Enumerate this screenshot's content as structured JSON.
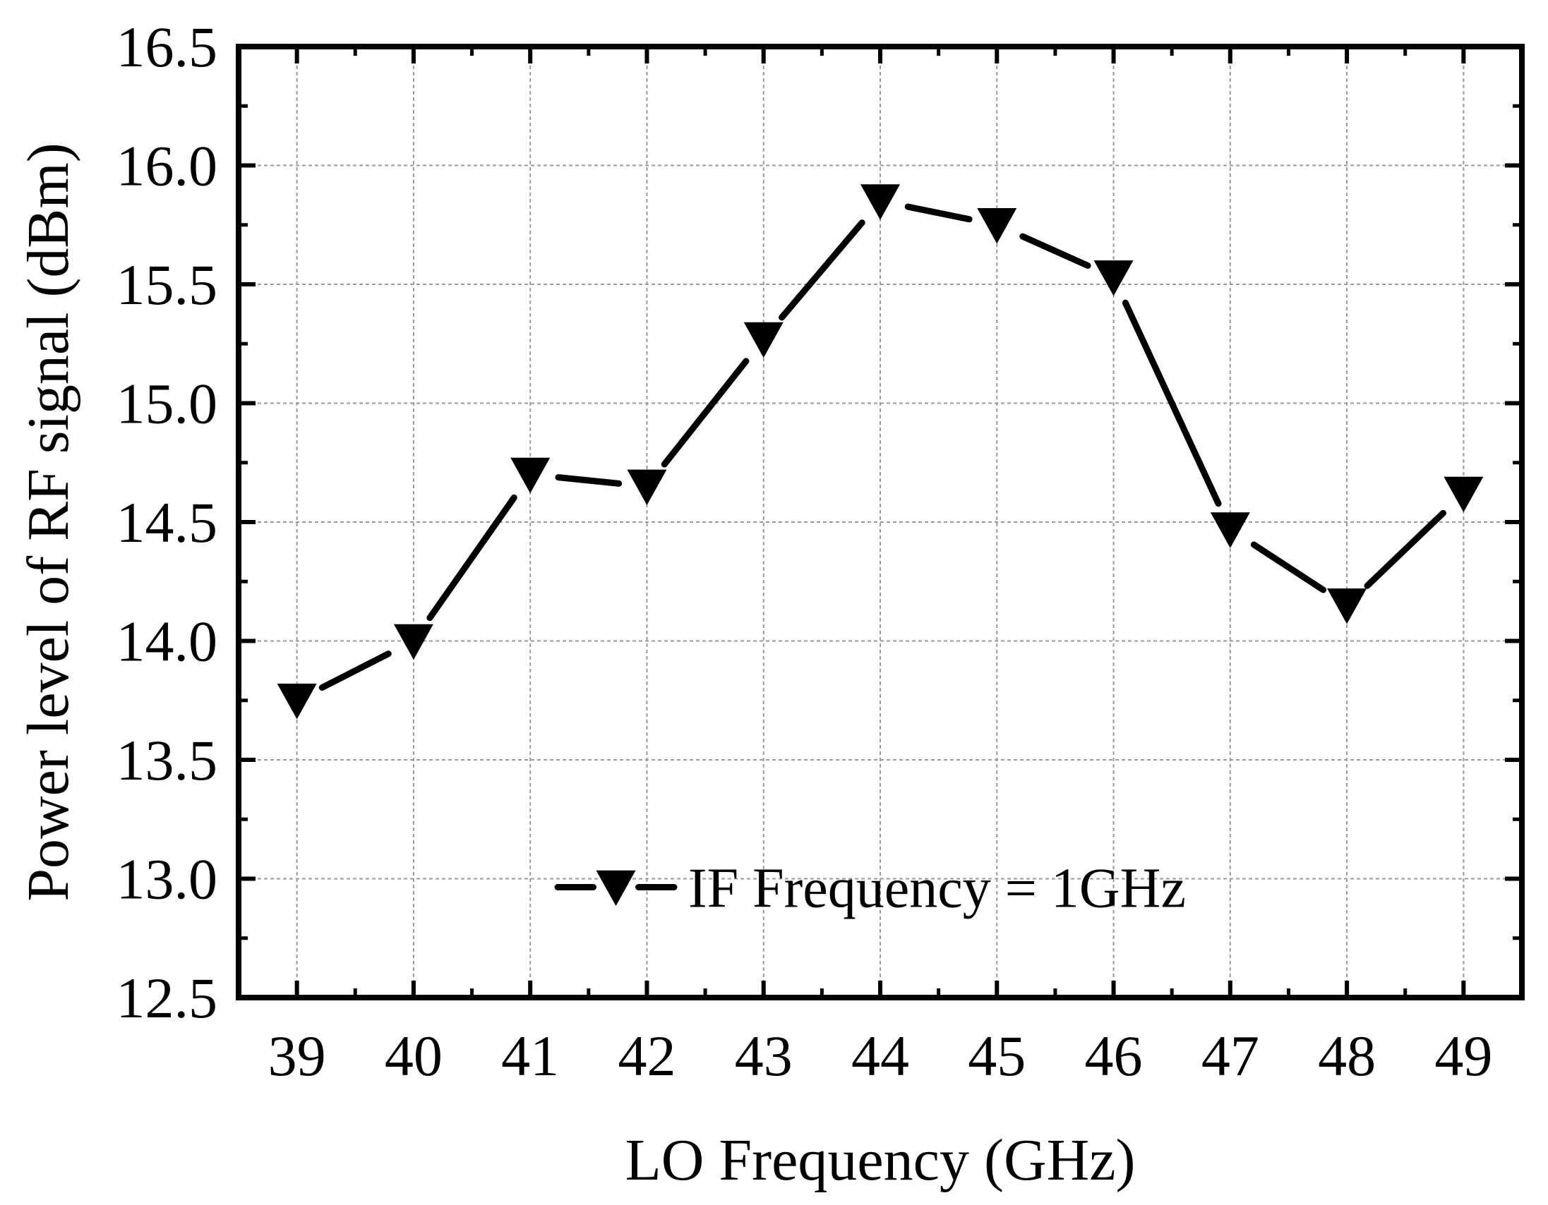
{
  "chart_data": {
    "type": "line",
    "title": "",
    "xlabel": "LO Frequency (GHz)",
    "ylabel": "Power level of RF signal (dBm)",
    "x": [
      39,
      40,
      41,
      42,
      43,
      44,
      45,
      46,
      47,
      48,
      49
    ],
    "series": [
      {
        "name": "IF Frequency = 1GHz",
        "marker": "down-triangle",
        "color": "#000000",
        "values": [
          13.75,
          14.0,
          14.7,
          14.65,
          15.27,
          15.85,
          15.75,
          15.53,
          14.47,
          14.15,
          14.62
        ]
      }
    ],
    "xlim": [
      38.5,
      49.5
    ],
    "ylim": [
      12.5,
      16.5
    ],
    "xticks": [
      "39",
      "40",
      "41",
      "42",
      "43",
      "44",
      "45",
      "46",
      "47",
      "48",
      "49"
    ],
    "yticks": [
      "12.5",
      "13.0",
      "13.5",
      "14.0",
      "14.5",
      "15.0",
      "15.5",
      "16.0",
      "16.5"
    ],
    "grid": true,
    "legend_position": "bottom-center"
  }
}
